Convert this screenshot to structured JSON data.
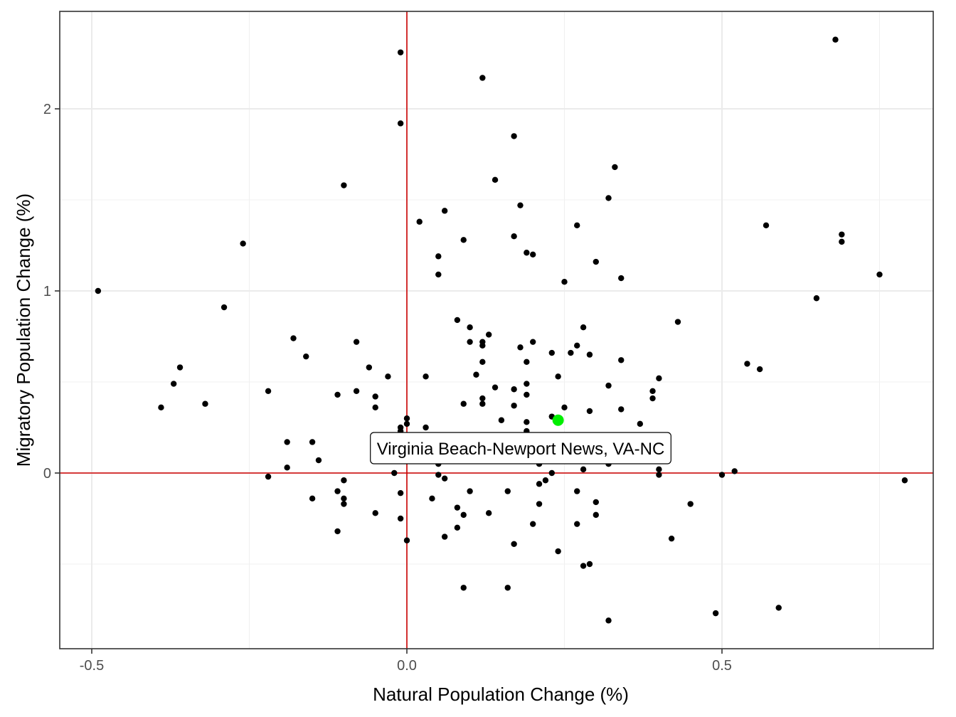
{
  "chart_data": {
    "type": "scatter",
    "xlabel": "Natural Population Change (%)",
    "ylabel": "Migratory Population Change (%)",
    "xlim": [
      -0.5,
      0.8
    ],
    "ylim": [
      -0.8,
      2.4
    ],
    "x_ticks": [
      -0.5,
      0.0,
      0.5
    ],
    "x_tick_labels": [
      "-0.5",
      "0.0",
      "0.5"
    ],
    "y_ticks": [
      0,
      1,
      2
    ],
    "y_tick_labels": [
      "0",
      "1",
      "2"
    ],
    "grid": true,
    "reference_lines": {
      "x": 0,
      "y": 0,
      "color": "#cc0000"
    },
    "point_color": "#000000",
    "highlight_color": "#00ee00",
    "highlight": {
      "label": "Virginia Beach-Newport News, VA-NC",
      "x": 0.24,
      "y": 0.29
    },
    "points": [
      [
        0.68,
        2.38
      ],
      [
        -0.01,
        2.31
      ],
      [
        0.12,
        2.17
      ],
      [
        -0.01,
        1.92
      ],
      [
        0.17,
        1.85
      ],
      [
        0.33,
        1.68
      ],
      [
        0.14,
        1.61
      ],
      [
        -0.1,
        1.58
      ],
      [
        0.32,
        1.51
      ],
      [
        0.18,
        1.47
      ],
      [
        0.06,
        1.44
      ],
      [
        0.02,
        1.38
      ],
      [
        0.27,
        1.36
      ],
      [
        0.57,
        1.36
      ],
      [
        0.69,
        1.31
      ],
      [
        0.17,
        1.3
      ],
      [
        0.09,
        1.28
      ],
      [
        -0.26,
        1.26
      ],
      [
        0.69,
        1.27
      ],
      [
        0.19,
        1.21
      ],
      [
        0.2,
        1.2
      ],
      [
        0.05,
        1.19
      ],
      [
        0.3,
        1.16
      ],
      [
        0.05,
        1.09
      ],
      [
        0.75,
        1.09
      ],
      [
        0.34,
        1.07
      ],
      [
        0.25,
        1.05
      ],
      [
        -0.49,
        1.0
      ],
      [
        0.65,
        0.96
      ],
      [
        -0.29,
        0.91
      ],
      [
        0.08,
        0.84
      ],
      [
        0.43,
        0.83
      ],
      [
        0.1,
        0.8
      ],
      [
        0.28,
        0.8
      ],
      [
        0.13,
        0.76
      ],
      [
        -0.18,
        0.74
      ],
      [
        0.12,
        0.72
      ],
      [
        -0.08,
        0.72
      ],
      [
        0.1,
        0.72
      ],
      [
        0.2,
        0.72
      ],
      [
        0.12,
        0.7
      ],
      [
        0.18,
        0.69
      ],
      [
        0.27,
        0.7
      ],
      [
        0.23,
        0.66
      ],
      [
        0.26,
        0.66
      ],
      [
        0.29,
        0.65
      ],
      [
        -0.16,
        0.64
      ],
      [
        0.12,
        0.61
      ],
      [
        0.19,
        0.61
      ],
      [
        0.34,
        0.62
      ],
      [
        0.54,
        0.6
      ],
      [
        -0.36,
        0.58
      ],
      [
        -0.06,
        0.58
      ],
      [
        0.56,
        0.57
      ],
      [
        0.11,
        0.54
      ],
      [
        -0.03,
        0.53
      ],
      [
        0.03,
        0.53
      ],
      [
        0.24,
        0.53
      ],
      [
        0.4,
        0.52
      ],
      [
        -0.37,
        0.49
      ],
      [
        0.19,
        0.49
      ],
      [
        0.32,
        0.48
      ],
      [
        0.14,
        0.47
      ],
      [
        -0.08,
        0.45
      ],
      [
        0.17,
        0.46
      ],
      [
        0.39,
        0.45
      ],
      [
        -0.22,
        0.45
      ],
      [
        -0.11,
        0.43
      ],
      [
        -0.05,
        0.42
      ],
      [
        0.19,
        0.43
      ],
      [
        0.12,
        0.41
      ],
      [
        0.39,
        0.41
      ],
      [
        0.09,
        0.38
      ],
      [
        0.12,
        0.38
      ],
      [
        0.17,
        0.37
      ],
      [
        -0.32,
        0.38
      ],
      [
        -0.39,
        0.36
      ],
      [
        -0.05,
        0.36
      ],
      [
        0.25,
        0.36
      ],
      [
        0.34,
        0.35
      ],
      [
        0.29,
        0.34
      ],
      [
        0.23,
        0.31
      ],
      [
        0.0,
        0.3
      ],
      [
        0.15,
        0.29
      ],
      [
        0.19,
        0.28
      ],
      [
        0.0,
        0.27
      ],
      [
        0.37,
        0.27
      ],
      [
        -0.01,
        0.25
      ],
      [
        0.03,
        0.25
      ],
      [
        0.19,
        0.23
      ],
      [
        -0.01,
        0.23
      ],
      [
        -0.19,
        0.17
      ],
      [
        -0.15,
        0.17
      ],
      [
        0.09,
        0.16
      ],
      [
        0.26,
        0.16
      ],
      [
        0.05,
        0.13
      ],
      [
        0.22,
        0.1
      ],
      [
        0.02,
        0.08
      ],
      [
        -0.14,
        0.07
      ],
      [
        0.1,
        0.07
      ],
      [
        0.16,
        0.07
      ],
      [
        0.32,
        0.05
      ],
      [
        0.05,
        0.05
      ],
      [
        0.21,
        0.05
      ],
      [
        -0.19,
        0.03
      ],
      [
        0.4,
        0.02
      ],
      [
        0.28,
        0.02
      ],
      [
        0.52,
        0.01
      ],
      [
        -0.02,
        0.0
      ],
      [
        0.23,
        0.0
      ],
      [
        0.05,
        -0.01
      ],
      [
        0.4,
        -0.01
      ],
      [
        0.5,
        -0.01
      ],
      [
        -0.22,
        -0.02
      ],
      [
        0.06,
        -0.03
      ],
      [
        0.22,
        -0.04
      ],
      [
        -0.1,
        -0.04
      ],
      [
        0.21,
        -0.06
      ],
      [
        0.79,
        -0.04
      ],
      [
        -0.11,
        -0.1
      ],
      [
        -0.01,
        -0.11
      ],
      [
        0.1,
        -0.1
      ],
      [
        0.16,
        -0.1
      ],
      [
        0.27,
        -0.1
      ],
      [
        -0.15,
        -0.14
      ],
      [
        0.04,
        -0.14
      ],
      [
        -0.1,
        -0.14
      ],
      [
        0.3,
        -0.16
      ],
      [
        -0.1,
        -0.17
      ],
      [
        0.21,
        -0.17
      ],
      [
        0.45,
        -0.17
      ],
      [
        0.08,
        -0.19
      ],
      [
        -0.05,
        -0.22
      ],
      [
        0.13,
        -0.22
      ],
      [
        0.09,
        -0.23
      ],
      [
        0.3,
        -0.23
      ],
      [
        -0.01,
        -0.25
      ],
      [
        0.2,
        -0.28
      ],
      [
        0.27,
        -0.28
      ],
      [
        0.08,
        -0.3
      ],
      [
        -0.11,
        -0.32
      ],
      [
        0.06,
        -0.35
      ],
      [
        0.0,
        -0.37
      ],
      [
        0.42,
        -0.36
      ],
      [
        0.17,
        -0.39
      ],
      [
        0.24,
        -0.43
      ],
      [
        0.29,
        -0.5
      ],
      [
        0.28,
        -0.51
      ],
      [
        0.09,
        -0.63
      ],
      [
        0.16,
        -0.63
      ],
      [
        0.59,
        -0.74
      ],
      [
        0.49,
        -0.77
      ],
      [
        0.32,
        -0.81
      ]
    ]
  }
}
